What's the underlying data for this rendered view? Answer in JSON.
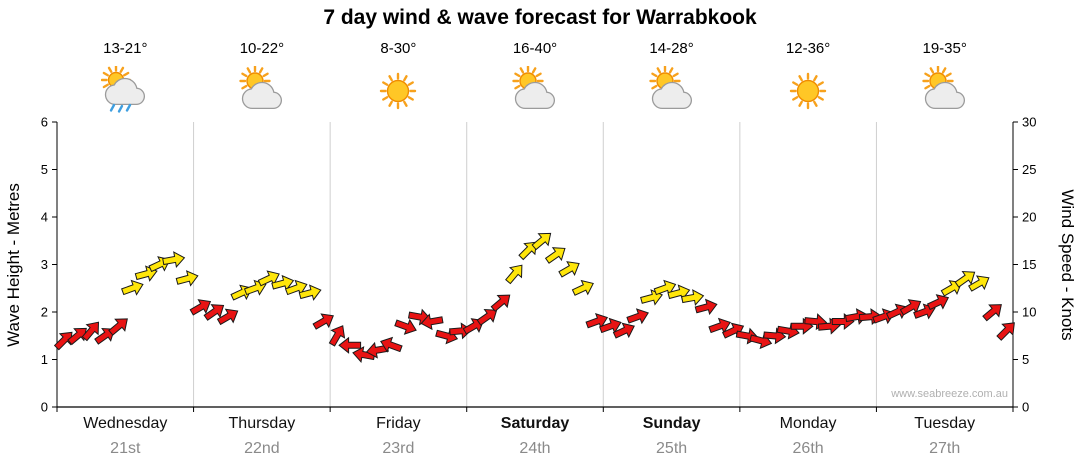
{
  "title": "7 day wind & wave forecast for Warrabkook",
  "watermark": "www.seabreeze.com.au",
  "chart_data": {
    "type": "wind-barb-timeseries",
    "title": "7 day wind & wave forecast for Warrabkook",
    "left_axis": {
      "label": "Wave Height - Metres",
      "lim": [
        0,
        6
      ],
      "ticks": [
        0,
        1,
        2,
        3,
        4,
        5,
        6
      ]
    },
    "right_axis": {
      "label": "Wind Speed - Knots",
      "lim": [
        0,
        30
      ],
      "ticks": [
        0,
        5,
        10,
        15,
        20,
        25,
        30
      ]
    },
    "grid": {
      "vertical_day_lines": true,
      "horizontal": false
    },
    "days": [
      {
        "name": "Wednesday",
        "date": "21st",
        "temp": "13-21°",
        "icon": "sun-cloud-rain",
        "bold": false
      },
      {
        "name": "Thursday",
        "date": "22nd",
        "temp": "10-22°",
        "icon": "sun-cloud",
        "bold": false
      },
      {
        "name": "Friday",
        "date": "23rd",
        "temp": "8-30°",
        "icon": "sun",
        "bold": false
      },
      {
        "name": "Saturday",
        "date": "24th",
        "temp": "16-40°",
        "icon": "sun-cloud",
        "bold": true
      },
      {
        "name": "Sunday",
        "date": "25th",
        "temp": "14-28°",
        "icon": "sun-cloud",
        "bold": true
      },
      {
        "name": "Monday",
        "date": "26th",
        "temp": "12-36°",
        "icon": "sun",
        "bold": false
      },
      {
        "name": "Tuesday",
        "date": "27th",
        "temp": "19-35°",
        "icon": "sun-cloud",
        "bold": false
      }
    ],
    "series": {
      "name": "Wind speed",
      "unit": "knots",
      "points_per_day": 10,
      "speeds_knots": [
        7,
        7.5,
        8,
        7.5,
        8.5,
        12.5,
        14,
        15,
        15.5,
        13.5,
        10.5,
        10,
        9.5,
        12,
        12.5,
        13.5,
        13,
        12.5,
        12,
        9,
        7.5,
        6.5,
        5.5,
        6,
        6.5,
        8.5,
        9.5,
        9,
        7.5,
        8,
        8.5,
        9.5,
        11,
        14,
        16.5,
        17.5,
        16,
        14.5,
        12.5,
        9,
        8.5,
        8,
        9.5,
        11.5,
        12.5,
        12,
        11.5,
        10.5,
        8.5,
        8,
        7.5,
        7,
        7.5,
        8,
        8.5,
        9,
        8.5,
        9,
        9.5,
        9.5,
        9.5,
        10,
        10.5,
        10,
        11,
        12.5,
        13.5,
        13,
        10,
        8
      ],
      "dirs_deg": [
        -45,
        -40,
        -50,
        -35,
        -40,
        -20,
        -15,
        -25,
        -10,
        -15,
        -30,
        -35,
        -30,
        -25,
        -20,
        -25,
        -15,
        -20,
        -15,
        -30,
        -60,
        180,
        190,
        170,
        200,
        20,
        10,
        170,
        15,
        -5,
        -30,
        -35,
        -40,
        -50,
        -45,
        -40,
        -35,
        -30,
        -25,
        -20,
        -20,
        -25,
        -20,
        -15,
        -20,
        -15,
        -10,
        -15,
        -20,
        -25,
        10,
        15,
        5,
        10,
        0,
        5,
        -5,
        0,
        -10,
        -5,
        -20,
        -25,
        -30,
        -20,
        -25,
        -30,
        -35,
        -30,
        -40,
        -45
      ]
    },
    "colors": {
      "low_wind": "#e81313",
      "high_wind": "#ffe60a",
      "yellow_threshold_knots": 11.5
    }
  }
}
